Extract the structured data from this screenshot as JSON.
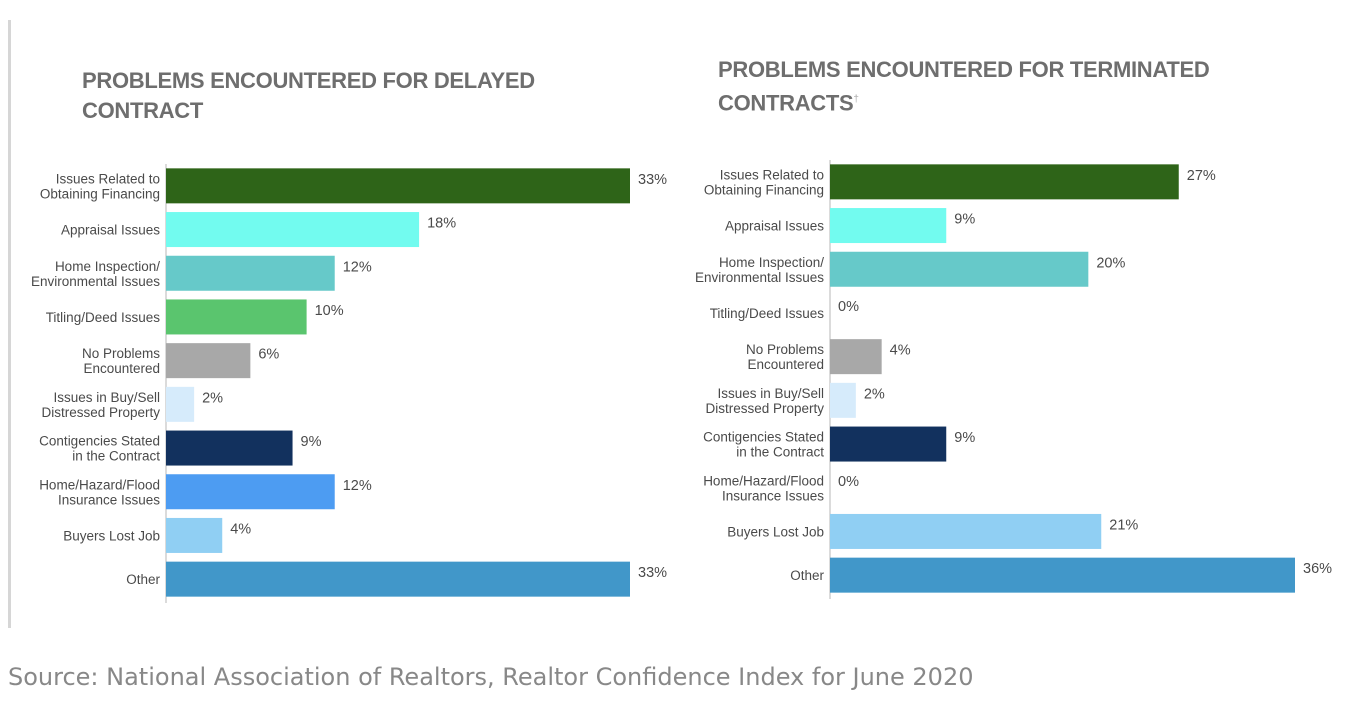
{
  "chart_data": [
    {
      "type": "bar",
      "orientation": "horizontal",
      "title": "PROBLEMS ENCOUNTERED FOR DELAYED CONTRACT",
      "categories": [
        [
          "Issues Related to",
          "Obtaining Financing"
        ],
        [
          "Appraisal Issues"
        ],
        [
          "Home Inspection/",
          "Environmental Issues"
        ],
        [
          "Titling/Deed Issues"
        ],
        [
          "No Problems",
          "Encountered"
        ],
        [
          "Issues in Buy/Sell",
          "Distressed Property"
        ],
        [
          "Contigencies Stated",
          "in the Contract"
        ],
        [
          "Home/Hazard/Flood",
          "Insurance Issues"
        ],
        [
          "Buyers Lost Job"
        ],
        [
          "Other"
        ]
      ],
      "values": [
        33,
        18,
        12,
        10,
        6,
        2,
        9,
        12,
        4,
        33
      ],
      "value_labels": [
        "33%",
        "18%",
        "12%",
        "10%",
        "6%",
        "2%",
        "9%",
        "12%",
        "4%",
        "33%"
      ],
      "colors": [
        "#2e6418",
        "#72fbef",
        "#66c9c9",
        "#5ac56e",
        "#a8a8a8",
        "#d6ebfb",
        "#12315e",
        "#4d9cf2",
        "#90cff3",
        "#4197c9"
      ],
      "xlim": [
        0,
        33
      ]
    },
    {
      "type": "bar",
      "orientation": "horizontal",
      "title": "PROBLEMS ENCOUNTERED FOR TERMINATED CONTRACTS",
      "title_superscript": "†",
      "categories": [
        [
          "Issues Related to",
          "Obtaining Financing"
        ],
        [
          "Appraisal Issues"
        ],
        [
          "Home Inspection/",
          "Environmental Issues"
        ],
        [
          "Titling/Deed Issues"
        ],
        [
          "No Problems",
          "Encountered"
        ],
        [
          "Issues in Buy/Sell",
          "Distressed Property"
        ],
        [
          "Contigencies Stated",
          "in the Contract"
        ],
        [
          "Home/Hazard/Flood",
          "Insurance Issues"
        ],
        [
          "Buyers Lost Job"
        ],
        [
          "Other"
        ]
      ],
      "values": [
        27,
        9,
        20,
        0,
        4,
        2,
        9,
        0,
        21,
        36
      ],
      "value_labels": [
        "27%",
        "9%",
        "20%",
        "0%",
        "4%",
        "2%",
        "9%",
        "0%",
        "21%",
        "36%"
      ],
      "colors": [
        "#2e6418",
        "#72fbef",
        "#66c9c9",
        "#5ac56e",
        "#a8a8a8",
        "#d6ebfb",
        "#12315e",
        "#4d9cf2",
        "#90cff3",
        "#4197c9"
      ],
      "xlim": [
        0,
        36
      ]
    }
  ],
  "footer": {
    "source": "Source: National Association of Realtors, Realtor Confidence Index for June 2020"
  }
}
